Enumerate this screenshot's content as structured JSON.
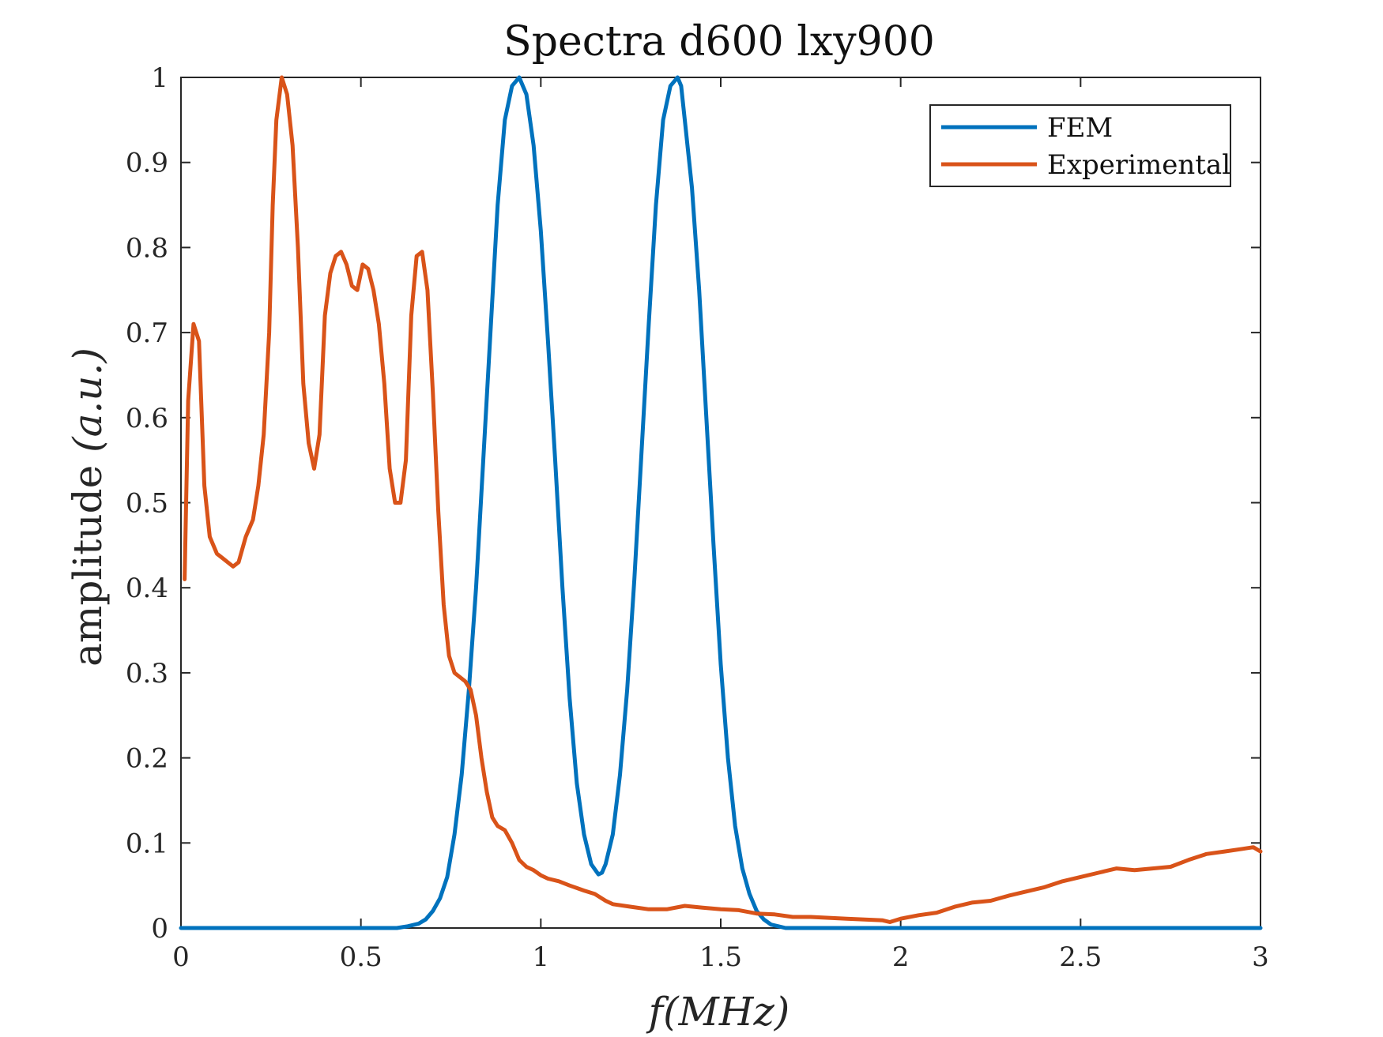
{
  "chart_data": {
    "type": "line",
    "title": "Spectra d600 lxy900",
    "xlabel": "f(MHz)",
    "ylabel_prefix": "amplitude ",
    "ylabel_units": "(a.u.)",
    "xlim": [
      0,
      3
    ],
    "ylim": [
      0,
      1
    ],
    "xticks": [
      0,
      0.5,
      1,
      1.5,
      2,
      2.5,
      3
    ],
    "xtick_labels": [
      "0",
      "0.5",
      "1",
      "1.5",
      "2",
      "2.5",
      "3"
    ],
    "yticks": [
      0,
      0.1,
      0.2,
      0.3,
      0.4,
      0.5,
      0.6,
      0.7,
      0.8,
      0.9,
      1
    ],
    "ytick_labels": [
      "0",
      "0.1",
      "0.2",
      "0.3",
      "0.4",
      "0.5",
      "0.6",
      "0.7",
      "0.8",
      "0.9",
      "1"
    ],
    "grid": false,
    "legend_position": "top-right",
    "series": [
      {
        "name": "FEM",
        "color": "#0072BD",
        "x": [
          0,
          0.6,
          0.63,
          0.66,
          0.68,
          0.7,
          0.72,
          0.74,
          0.76,
          0.78,
          0.8,
          0.82,
          0.84,
          0.86,
          0.88,
          0.9,
          0.92,
          0.94,
          0.96,
          0.98,
          1.0,
          1.02,
          1.04,
          1.06,
          1.08,
          1.1,
          1.12,
          1.14,
          1.16,
          1.17,
          1.18,
          1.2,
          1.22,
          1.24,
          1.26,
          1.28,
          1.3,
          1.32,
          1.34,
          1.36,
          1.38,
          1.39,
          1.4,
          1.42,
          1.44,
          1.46,
          1.48,
          1.5,
          1.52,
          1.54,
          1.56,
          1.58,
          1.6,
          1.62,
          1.64,
          1.66,
          1.68,
          1.72,
          2.0,
          2.5,
          3.0
        ],
        "y": [
          0,
          0,
          0.002,
          0.005,
          0.01,
          0.02,
          0.035,
          0.06,
          0.11,
          0.18,
          0.28,
          0.4,
          0.55,
          0.7,
          0.85,
          0.95,
          0.99,
          1.0,
          0.98,
          0.92,
          0.82,
          0.69,
          0.55,
          0.4,
          0.27,
          0.17,
          0.11,
          0.075,
          0.063,
          0.065,
          0.075,
          0.11,
          0.18,
          0.28,
          0.41,
          0.56,
          0.71,
          0.85,
          0.95,
          0.99,
          1.0,
          0.99,
          0.95,
          0.87,
          0.75,
          0.6,
          0.45,
          0.31,
          0.2,
          0.12,
          0.07,
          0.04,
          0.02,
          0.01,
          0.004,
          0.002,
          0,
          0,
          0,
          0,
          0
        ]
      },
      {
        "name": "Experimental",
        "color": "#D95319",
        "x": [
          0.01,
          0.02,
          0.035,
          0.05,
          0.065,
          0.08,
          0.1,
          0.115,
          0.13,
          0.145,
          0.16,
          0.18,
          0.2,
          0.215,
          0.23,
          0.245,
          0.255,
          0.265,
          0.28,
          0.295,
          0.31,
          0.325,
          0.34,
          0.355,
          0.37,
          0.385,
          0.4,
          0.415,
          0.43,
          0.445,
          0.46,
          0.475,
          0.49,
          0.505,
          0.52,
          0.535,
          0.55,
          0.565,
          0.58,
          0.595,
          0.61,
          0.625,
          0.64,
          0.655,
          0.67,
          0.685,
          0.7,
          0.715,
          0.73,
          0.745,
          0.76,
          0.775,
          0.79,
          0.805,
          0.82,
          0.835,
          0.85,
          0.865,
          0.88,
          0.9,
          0.92,
          0.94,
          0.96,
          0.98,
          1.0,
          1.02,
          1.05,
          1.08,
          1.1,
          1.12,
          1.15,
          1.18,
          1.2,
          1.25,
          1.3,
          1.35,
          1.4,
          1.45,
          1.5,
          1.55,
          1.6,
          1.65,
          1.7,
          1.75,
          1.8,
          1.85,
          1.9,
          1.95,
          1.97,
          2.0,
          2.05,
          2.1,
          2.15,
          2.2,
          2.25,
          2.3,
          2.35,
          2.4,
          2.45,
          2.5,
          2.55,
          2.6,
          2.65,
          2.7,
          2.75,
          2.8,
          2.85,
          2.9,
          2.95,
          2.98,
          3.0
        ],
        "y": [
          0.41,
          0.62,
          0.71,
          0.69,
          0.52,
          0.46,
          0.44,
          0.435,
          0.43,
          0.425,
          0.43,
          0.46,
          0.48,
          0.52,
          0.58,
          0.7,
          0.85,
          0.95,
          1.0,
          0.98,
          0.92,
          0.8,
          0.64,
          0.57,
          0.54,
          0.58,
          0.72,
          0.77,
          0.79,
          0.795,
          0.78,
          0.755,
          0.75,
          0.78,
          0.775,
          0.75,
          0.71,
          0.64,
          0.54,
          0.5,
          0.5,
          0.55,
          0.72,
          0.79,
          0.795,
          0.75,
          0.63,
          0.49,
          0.38,
          0.32,
          0.3,
          0.295,
          0.29,
          0.28,
          0.25,
          0.2,
          0.16,
          0.13,
          0.12,
          0.115,
          0.1,
          0.08,
          0.072,
          0.068,
          0.062,
          0.058,
          0.055,
          0.05,
          0.047,
          0.044,
          0.04,
          0.032,
          0.028,
          0.025,
          0.022,
          0.022,
          0.026,
          0.024,
          0.022,
          0.021,
          0.017,
          0.016,
          0.013,
          0.013,
          0.012,
          0.011,
          0.01,
          0.009,
          0.007,
          0.011,
          0.015,
          0.018,
          0.025,
          0.03,
          0.032,
          0.038,
          0.043,
          0.048,
          0.055,
          0.06,
          0.065,
          0.07,
          0.068,
          0.07,
          0.072,
          0.08,
          0.087,
          0.09,
          0.093,
          0.095,
          0.09
        ]
      }
    ]
  }
}
